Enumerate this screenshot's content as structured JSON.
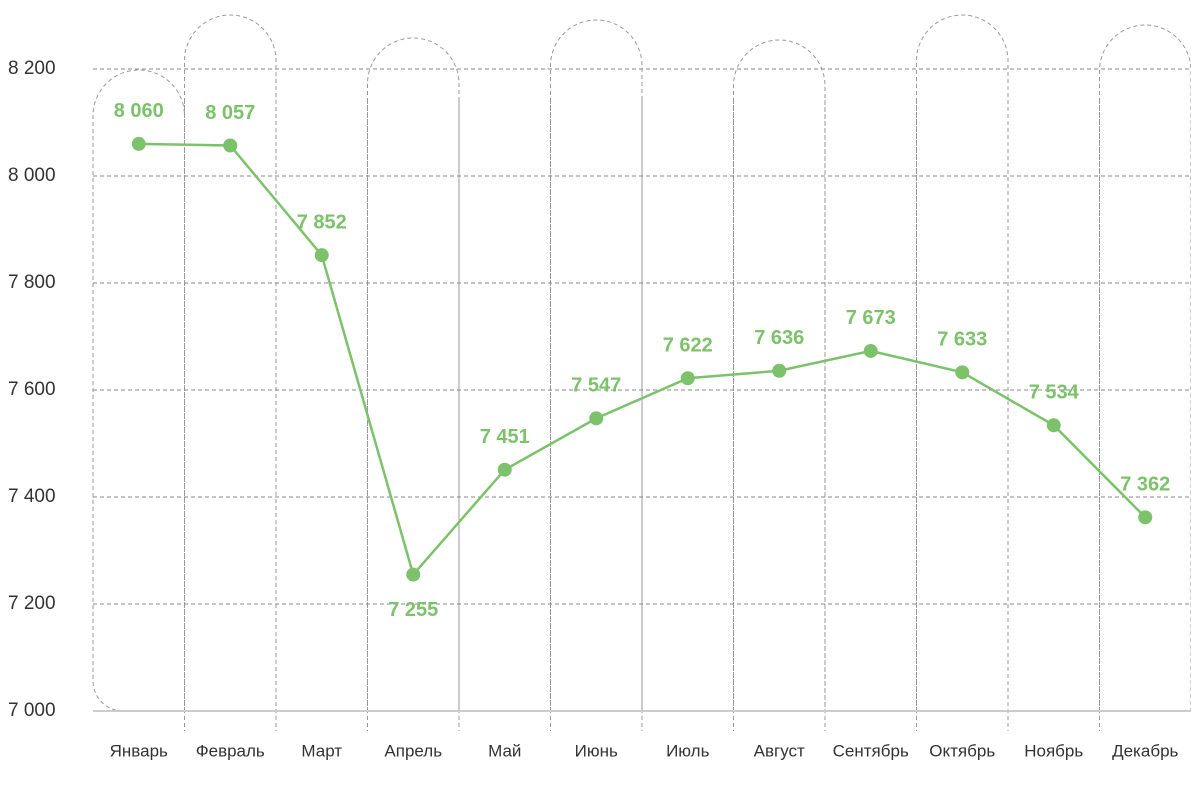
{
  "chart_data": {
    "type": "line",
    "categories": [
      "Январь",
      "Февраль",
      "Март",
      "Апрель",
      "Май",
      "Июнь",
      "Июль",
      "Август",
      "Сентябрь",
      "Октябрь",
      "Ноябрь",
      "Декабрь"
    ],
    "series": [
      {
        "color": "#7cc26a",
        "values": [
          8060,
          8057,
          7852,
          7255,
          7451,
          7547,
          7622,
          7636,
          7673,
          7633,
          7534,
          7362
        ],
        "value_labels": [
          "8 060",
          "8 057",
          "7 852",
          "7 255",
          "7 451",
          "7 547",
          "7 622",
          "7 636",
          "7 673",
          "7 633",
          "7 534",
          "7 362"
        ]
      }
    ],
    "ylim": [
      7000,
      8200
    ],
    "yticks": [
      {
        "value": 7000,
        "label": "7 000"
      },
      {
        "value": 7200,
        "label": "7 200"
      },
      {
        "value": 7400,
        "label": "7 400"
      },
      {
        "value": 7600,
        "label": "7 600"
      },
      {
        "value": 7800,
        "label": "7 800"
      },
      {
        "value": 8000,
        "label": "8 000"
      },
      {
        "value": 8200,
        "label": "8 200"
      }
    ],
    "grid": true
  }
}
